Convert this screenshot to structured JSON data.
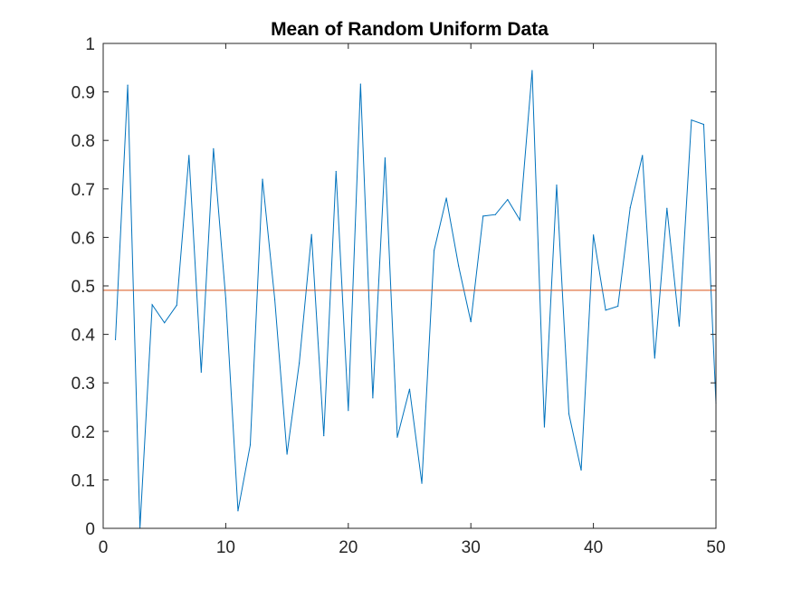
{
  "chart_data": {
    "type": "line",
    "title": "Mean of Random Uniform Data",
    "xlabel": "",
    "ylabel": "",
    "xlim": [
      0,
      50
    ],
    "ylim": [
      0,
      1
    ],
    "xticks": [
      "0",
      "10",
      "20",
      "30",
      "40",
      "50"
    ],
    "yticks": [
      "0",
      "0.1",
      "0.2",
      "0.3",
      "0.4",
      "0.5",
      "0.6",
      "0.7",
      "0.8",
      "0.9",
      "1"
    ],
    "grid": false,
    "legend": "none",
    "series": [
      {
        "color": "#0072BD",
        "x": [
          1,
          2,
          3,
          4,
          5,
          6,
          7,
          8,
          9,
          10,
          11,
          12,
          13,
          14,
          15,
          16,
          17,
          18,
          19,
          20,
          21,
          22,
          23,
          24,
          25,
          26,
          27,
          28,
          29,
          30,
          31,
          32,
          33,
          34,
          35,
          36,
          37,
          38,
          39,
          40,
          41,
          42,
          43,
          44,
          45,
          46,
          47,
          48,
          49,
          50
        ],
        "values": [
          0.389,
          0.914,
          0.0,
          0.461,
          0.424,
          0.46,
          0.769,
          0.322,
          0.783,
          0.474,
          0.036,
          0.172,
          0.72,
          0.472,
          0.153,
          0.341,
          0.606,
          0.191,
          0.736,
          0.243,
          0.916,
          0.269,
          0.764,
          0.188,
          0.287,
          0.093,
          0.573,
          0.681,
          0.541,
          0.426,
          0.644,
          0.647,
          0.678,
          0.636,
          0.944,
          0.209,
          0.708,
          0.236,
          0.12,
          0.605,
          0.45,
          0.458,
          0.661,
          0.769,
          0.351,
          0.66,
          0.417,
          0.842,
          0.833,
          0.258
        ]
      },
      {
        "color": "#D95319",
        "x": [
          0,
          50
        ],
        "values": [
          0.491,
          0.491
        ]
      }
    ]
  }
}
